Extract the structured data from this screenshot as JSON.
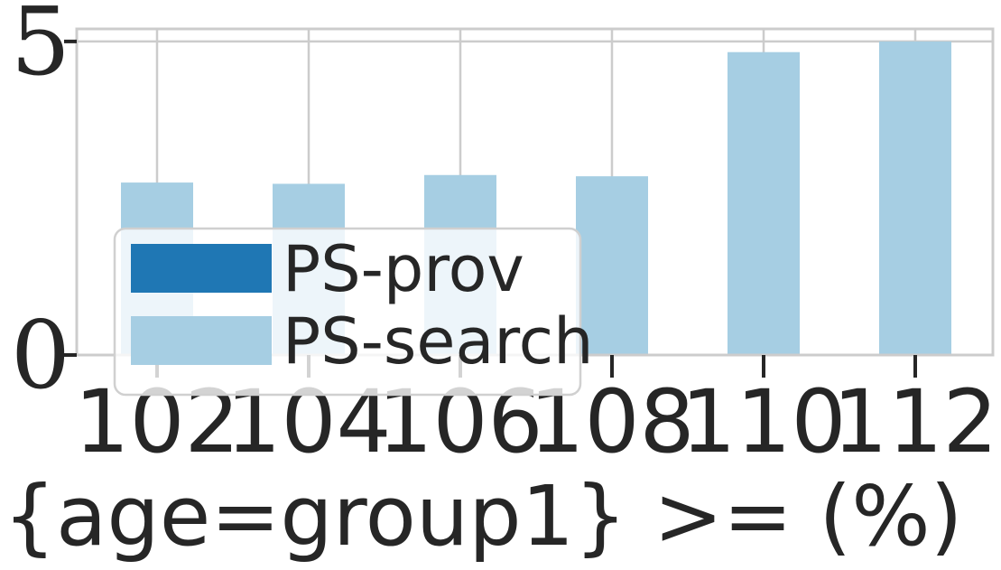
{
  "chart_data": {
    "type": "bar",
    "title": "",
    "xlabel": "{age=group1} >= (%)",
    "ylabel": "",
    "categories": [
      "102",
      "104",
      "106",
      "108",
      "110",
      "112"
    ],
    "series": [
      {
        "name": "PS-prov",
        "color": "#1f77b4",
        "values": [
          0,
          0,
          0,
          0,
          0,
          0
        ]
      },
      {
        "name": "PS-search",
        "color": "#a6cee3",
        "values": [
          2.75,
          2.73,
          2.87,
          2.85,
          4.83,
          5.0
        ]
      }
    ],
    "ylim": [
      0,
      5.2
    ],
    "yticks": [
      "0",
      "5"
    ],
    "grid": true,
    "legend_position": "lower-left"
  }
}
